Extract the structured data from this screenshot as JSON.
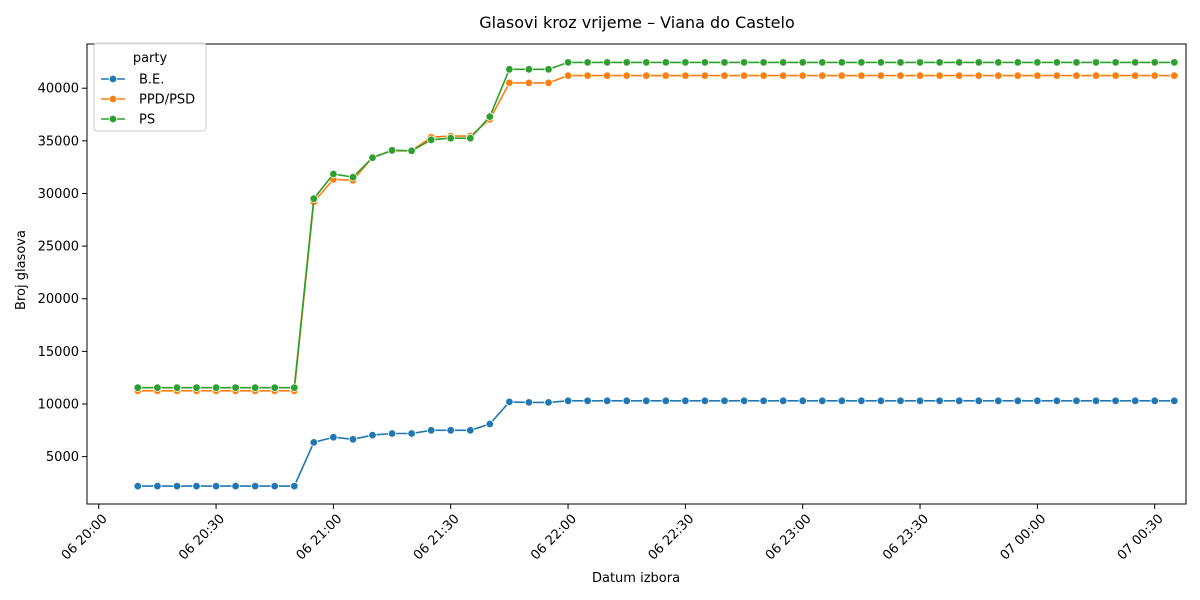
{
  "chart_data": {
    "type": "line",
    "title": "Glasovi kroz vrijeme – Viana do Castelo",
    "xlabel": "Datum izbora",
    "ylabel": "Broj glasova",
    "legend_title": "party",
    "legend_placement": "top-left",
    "grid": false,
    "x_ticks": [
      "06 20:00",
      "06 20:30",
      "06 21:00",
      "06 21:30",
      "06 22:00",
      "06 22:30",
      "06 23:00",
      "06 23:30",
      "07 00:00",
      "07 00:30"
    ],
    "x_tick_times": [
      "2024-03-06T20:00",
      "2024-03-06T20:30",
      "2024-03-06T21:00",
      "2024-03-06T21:30",
      "2024-03-06T22:00",
      "2024-03-06T22:30",
      "2024-03-06T23:00",
      "2024-03-06T23:30",
      "2024-03-07T00:00",
      "2024-03-07T00:30"
    ],
    "xlim": [
      "2024-03-06T19:57",
      "2024-03-07T00:38"
    ],
    "ylim": [
      500,
      44200
    ],
    "y_ticks": [
      5000,
      10000,
      15000,
      20000,
      25000,
      30000,
      35000,
      40000
    ],
    "x": [
      "2024-03-06T20:10",
      "2024-03-06T20:15",
      "2024-03-06T20:20",
      "2024-03-06T20:25",
      "2024-03-06T20:30",
      "2024-03-06T20:35",
      "2024-03-06T20:40",
      "2024-03-06T20:45",
      "2024-03-06T20:50",
      "2024-03-06T20:55",
      "2024-03-06T21:00",
      "2024-03-06T21:05",
      "2024-03-06T21:10",
      "2024-03-06T21:15",
      "2024-03-06T21:20",
      "2024-03-06T21:25",
      "2024-03-06T21:30",
      "2024-03-06T21:35",
      "2024-03-06T21:40",
      "2024-03-06T21:45",
      "2024-03-06T21:50",
      "2024-03-06T21:55",
      "2024-03-06T22:00",
      "2024-03-06T22:05",
      "2024-03-06T22:10",
      "2024-03-06T22:15",
      "2024-03-06T22:20",
      "2024-03-06T22:25",
      "2024-03-06T22:30",
      "2024-03-06T22:35",
      "2024-03-06T22:40",
      "2024-03-06T22:45",
      "2024-03-06T22:50",
      "2024-03-06T22:55",
      "2024-03-06T23:00",
      "2024-03-06T23:05",
      "2024-03-06T23:10",
      "2024-03-06T23:15",
      "2024-03-06T23:20",
      "2024-03-06T23:25",
      "2024-03-06T23:30",
      "2024-03-06T23:35",
      "2024-03-06T23:40",
      "2024-03-06T23:45",
      "2024-03-06T23:50",
      "2024-03-06T23:55",
      "2024-03-07T00:00",
      "2024-03-07T00:05",
      "2024-03-07T00:10",
      "2024-03-07T00:15",
      "2024-03-07T00:20",
      "2024-03-07T00:25",
      "2024-03-07T00:30",
      "2024-03-07T00:35"
    ],
    "series": [
      {
        "name": "B.E.",
        "color": "#1f77b4",
        "values": [
          2200,
          2200,
          2200,
          2200,
          2200,
          2200,
          2200,
          2200,
          2200,
          6350,
          6850,
          6650,
          7050,
          7200,
          7200,
          7500,
          7500,
          7500,
          8100,
          10200,
          10150,
          10150,
          10300,
          10300,
          10300,
          10300,
          10300,
          10300,
          10300,
          10300,
          10300,
          10300,
          10300,
          10300,
          10300,
          10300,
          10300,
          10300,
          10300,
          10300,
          10300,
          10300,
          10300,
          10300,
          10300,
          10300,
          10300,
          10300,
          10300,
          10300,
          10300,
          10300,
          10300,
          10300
        ]
      },
      {
        "name": "PPD/PSD",
        "color": "#ff7f0e",
        "values": [
          11250,
          11250,
          11250,
          11250,
          11250,
          11250,
          11250,
          11250,
          11250,
          29200,
          31350,
          31250,
          33450,
          34050,
          34050,
          35350,
          35450,
          35450,
          37050,
          40500,
          40500,
          40500,
          41200,
          41200,
          41200,
          41200,
          41200,
          41200,
          41200,
          41200,
          41200,
          41200,
          41200,
          41200,
          41200,
          41200,
          41200,
          41200,
          41200,
          41200,
          41200,
          41200,
          41200,
          41200,
          41200,
          41200,
          41200,
          41200,
          41200,
          41200,
          41200,
          41200,
          41200,
          41200
        ]
      },
      {
        "name": "PS",
        "color": "#2ca02c",
        "values": [
          11550,
          11550,
          11550,
          11550,
          11550,
          11550,
          11550,
          11550,
          11550,
          29500,
          31850,
          31550,
          33400,
          34100,
          34050,
          35100,
          35250,
          35250,
          37300,
          41800,
          41800,
          41800,
          42450,
          42450,
          42450,
          42450,
          42450,
          42450,
          42450,
          42450,
          42450,
          42450,
          42450,
          42450,
          42450,
          42450,
          42450,
          42450,
          42450,
          42450,
          42450,
          42450,
          42450,
          42450,
          42450,
          42450,
          42450,
          42450,
          42450,
          42450,
          42450,
          42450,
          42450,
          42450
        ]
      }
    ]
  }
}
